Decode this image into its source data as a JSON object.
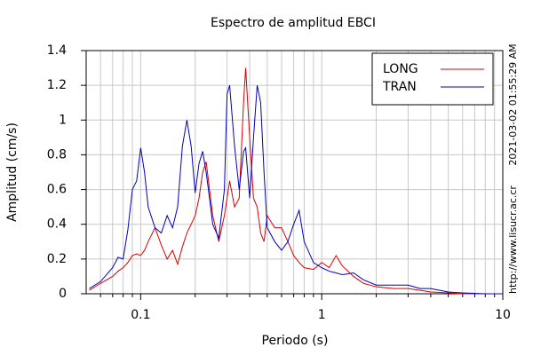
{
  "chart_data": {
    "type": "line",
    "title": "Espectro de amplitud EBCI",
    "x_label": "Periodo (s)",
    "y_label": "Amplitud (cm/s)",
    "annotations": [
      "2021-03-02 01:55:29 AM",
      "http://www.lisucr.ac.cr"
    ],
    "xscale": "log",
    "grid": true,
    "legend": "upper right",
    "xlim": [
      0.05,
      10
    ],
    "ylim": [
      0,
      1.4
    ],
    "xticks": [
      0.1,
      1,
      10
    ],
    "xminor_ticks": [
      0.06,
      0.07,
      0.08,
      0.09,
      0.2,
      0.3,
      0.4,
      0.5,
      0.6,
      0.7,
      0.8,
      0.9,
      2,
      3,
      4,
      5,
      6,
      7,
      8,
      9
    ],
    "yticks": [
      0,
      0.2,
      0.4,
      0.6,
      0.8,
      1,
      1.2,
      1.4
    ],
    "x": [
      0.052,
      0.06,
      0.07,
      0.075,
      0.08,
      0.085,
      0.09,
      0.095,
      0.1,
      0.105,
      0.11,
      0.12,
      0.13,
      0.14,
      0.15,
      0.16,
      0.17,
      0.18,
      0.19,
      0.2,
      0.21,
      0.22,
      0.23,
      0.24,
      0.25,
      0.27,
      0.29,
      0.3,
      0.31,
      0.33,
      0.35,
      0.37,
      0.38,
      0.4,
      0.42,
      0.44,
      0.46,
      0.48,
      0.5,
      0.55,
      0.6,
      0.65,
      0.7,
      0.75,
      0.8,
      0.9,
      1,
      1.1,
      1.2,
      1.3,
      1.5,
      1.7,
      2,
      2.5,
      3,
      3.5,
      4,
      5,
      6,
      8,
      10
    ],
    "series": [
      {
        "name": "LONG",
        "color": "#dd0000",
        "values": [
          0.02,
          0.06,
          0.1,
          0.13,
          0.15,
          0.18,
          0.22,
          0.23,
          0.22,
          0.25,
          0.3,
          0.38,
          0.28,
          0.2,
          0.25,
          0.17,
          0.27,
          0.35,
          0.4,
          0.45,
          0.55,
          0.7,
          0.76,
          0.6,
          0.45,
          0.3,
          0.45,
          0.55,
          0.65,
          0.5,
          0.55,
          1.1,
          1.3,
          0.9,
          0.55,
          0.5,
          0.35,
          0.3,
          0.45,
          0.38,
          0.38,
          0.3,
          0.22,
          0.18,
          0.15,
          0.14,
          0.18,
          0.15,
          0.22,
          0.16,
          0.1,
          0.06,
          0.04,
          0.03,
          0.03,
          0.02,
          0.01,
          0.005,
          0,
          0,
          0
        ]
      },
      {
        "name": "TRAN",
        "color": "#0000bb",
        "values": [
          0.03,
          0.07,
          0.15,
          0.21,
          0.2,
          0.37,
          0.6,
          0.65,
          0.84,
          0.7,
          0.5,
          0.38,
          0.35,
          0.45,
          0.38,
          0.5,
          0.85,
          1.0,
          0.85,
          0.58,
          0.75,
          0.82,
          0.7,
          0.55,
          0.4,
          0.32,
          0.6,
          1.15,
          1.2,
          0.85,
          0.6,
          0.82,
          0.84,
          0.55,
          0.9,
          1.2,
          1.1,
          0.7,
          0.38,
          0.3,
          0.25,
          0.3,
          0.4,
          0.48,
          0.3,
          0.18,
          0.15,
          0.13,
          0.12,
          0.11,
          0.12,
          0.08,
          0.05,
          0.05,
          0.05,
          0.03,
          0.03,
          0.01,
          0.005,
          0,
          0
        ]
      }
    ]
  }
}
